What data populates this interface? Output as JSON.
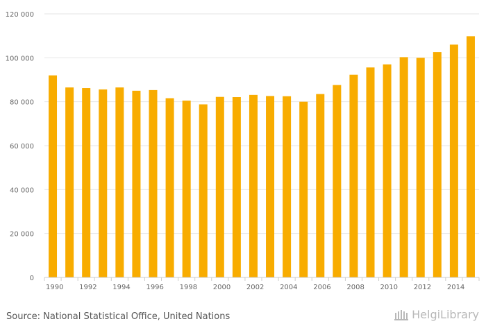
{
  "chart_data": {
    "type": "bar",
    "title": "",
    "xlabel": "",
    "ylabel": "",
    "categories": [
      "1990",
      "1991",
      "1992",
      "1993",
      "1994",
      "1995",
      "1996",
      "1997",
      "1998",
      "1999",
      "2000",
      "2001",
      "2002",
      "2003",
      "2004",
      "2005",
      "2006",
      "2007",
      "2008",
      "2009",
      "2010",
      "2011",
      "2012",
      "2013",
      "2014",
      "2015"
    ],
    "x_tick_labels": [
      "1990",
      "1992",
      "1994",
      "1996",
      "1998",
      "2000",
      "2002",
      "2004",
      "2006",
      "2008",
      "2010",
      "2012",
      "2014"
    ],
    "values": [
      92000,
      86500,
      86200,
      85600,
      86500,
      85000,
      85300,
      81600,
      80500,
      78800,
      82200,
      82100,
      83100,
      82600,
      82500,
      80000,
      83500,
      87600,
      92300,
      95600,
      97000,
      100300,
      100000,
      102600,
      106000,
      109800
    ],
    "ylim": [
      0,
      120000
    ],
    "y_ticks": [
      0,
      20000,
      40000,
      60000,
      80000,
      100000,
      120000
    ],
    "y_tick_labels": [
      "0",
      "20 000",
      "40 000",
      "60 000",
      "80 000",
      "100 000",
      "120 000"
    ],
    "bar_color": "#f8ac00",
    "grid": true,
    "legend": "none"
  },
  "footer": {
    "source": "Source: National Statistical Office, United Nations",
    "brand": "HelgiLibrary"
  },
  "colors": {
    "grid": "#e6e6e6",
    "axis_text": "#666666",
    "brand": "#b8b8b8"
  }
}
